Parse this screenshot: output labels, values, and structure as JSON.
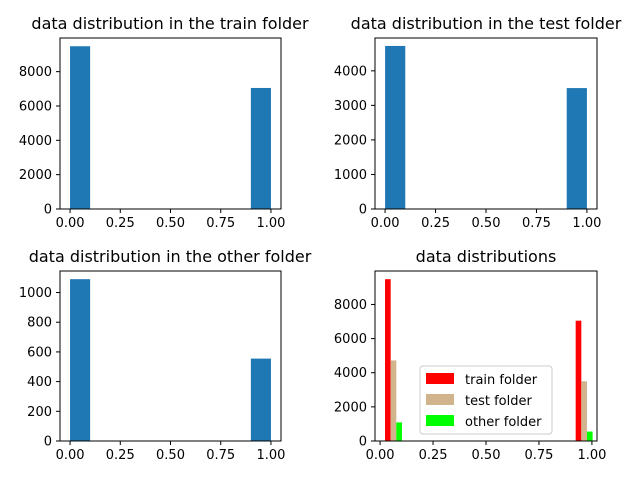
{
  "chart_data": [
    {
      "type": "bar",
      "title": "data distribution in the train folder",
      "xlim": [
        -0.05,
        1.05
      ],
      "ylim": [
        0,
        9960
      ],
      "xticks": [
        "0.00",
        "0.25",
        "0.50",
        "0.75",
        "1.00"
      ],
      "yticks": [
        "0",
        "2000",
        "4000",
        "6000",
        "8000"
      ],
      "bars": [
        {
          "x0": 0.0,
          "x1": 0.1,
          "value": 9480
        },
        {
          "x0": 0.9,
          "x1": 1.0,
          "value": 7050
        }
      ],
      "color": "#1f77b4"
    },
    {
      "type": "bar",
      "title": "data distribution in the test folder",
      "xlim": [
        -0.05,
        1.05
      ],
      "ylim": [
        0,
        4950
      ],
      "xticks": [
        "0.00",
        "0.25",
        "0.50",
        "0.75",
        "1.00"
      ],
      "yticks": [
        "0",
        "1000",
        "2000",
        "3000",
        "4000"
      ],
      "bars": [
        {
          "x0": 0.0,
          "x1": 0.1,
          "value": 4720
        },
        {
          "x0": 0.9,
          "x1": 1.0,
          "value": 3500
        }
      ],
      "color": "#1f77b4"
    },
    {
      "type": "bar",
      "title": "data distribution in the other folder",
      "xlim": [
        -0.05,
        1.05
      ],
      "ylim": [
        0,
        1145
      ],
      "xticks": [
        "0.00",
        "0.25",
        "0.50",
        "0.75",
        "1.00"
      ],
      "yticks": [
        "0",
        "200",
        "400",
        "600",
        "800",
        "1000"
      ],
      "bars": [
        {
          "x0": 0.0,
          "x1": 0.1,
          "value": 1090
        },
        {
          "x0": 0.9,
          "x1": 1.0,
          "value": 555
        }
      ],
      "color": "#1f77b4"
    },
    {
      "type": "bar",
      "title": "data distributions",
      "xlim": [
        -0.024,
        1.024
      ],
      "ylim": [
        0,
        9960
      ],
      "xticks": [
        "0.00",
        "0.25",
        "0.50",
        "0.75",
        "1.00"
      ],
      "yticks": [
        "0",
        "2000",
        "4000",
        "6000",
        "8000"
      ],
      "legend_position": "lower-center",
      "series": [
        {
          "name": "train folder",
          "color": "#ff0000",
          "bars": [
            {
              "x0": 0.0233,
              "x1": 0.05,
              "value": 9480
            },
            {
              "x0": 0.9233,
              "x1": 0.95,
              "value": 7050
            }
          ]
        },
        {
          "name": "test folder",
          "color": "#d2b48c",
          "bars": [
            {
              "x0": 0.05,
              "x1": 0.0767,
              "value": 4720
            },
            {
              "x0": 0.95,
              "x1": 0.9767,
              "value": 3500
            }
          ]
        },
        {
          "name": "other folder",
          "color": "#00ff00",
          "bars": [
            {
              "x0": 0.0767,
              "x1": 0.1033,
              "value": 1090
            },
            {
              "x0": 0.9767,
              "x1": 1.0033,
              "value": 555
            }
          ]
        }
      ]
    }
  ]
}
